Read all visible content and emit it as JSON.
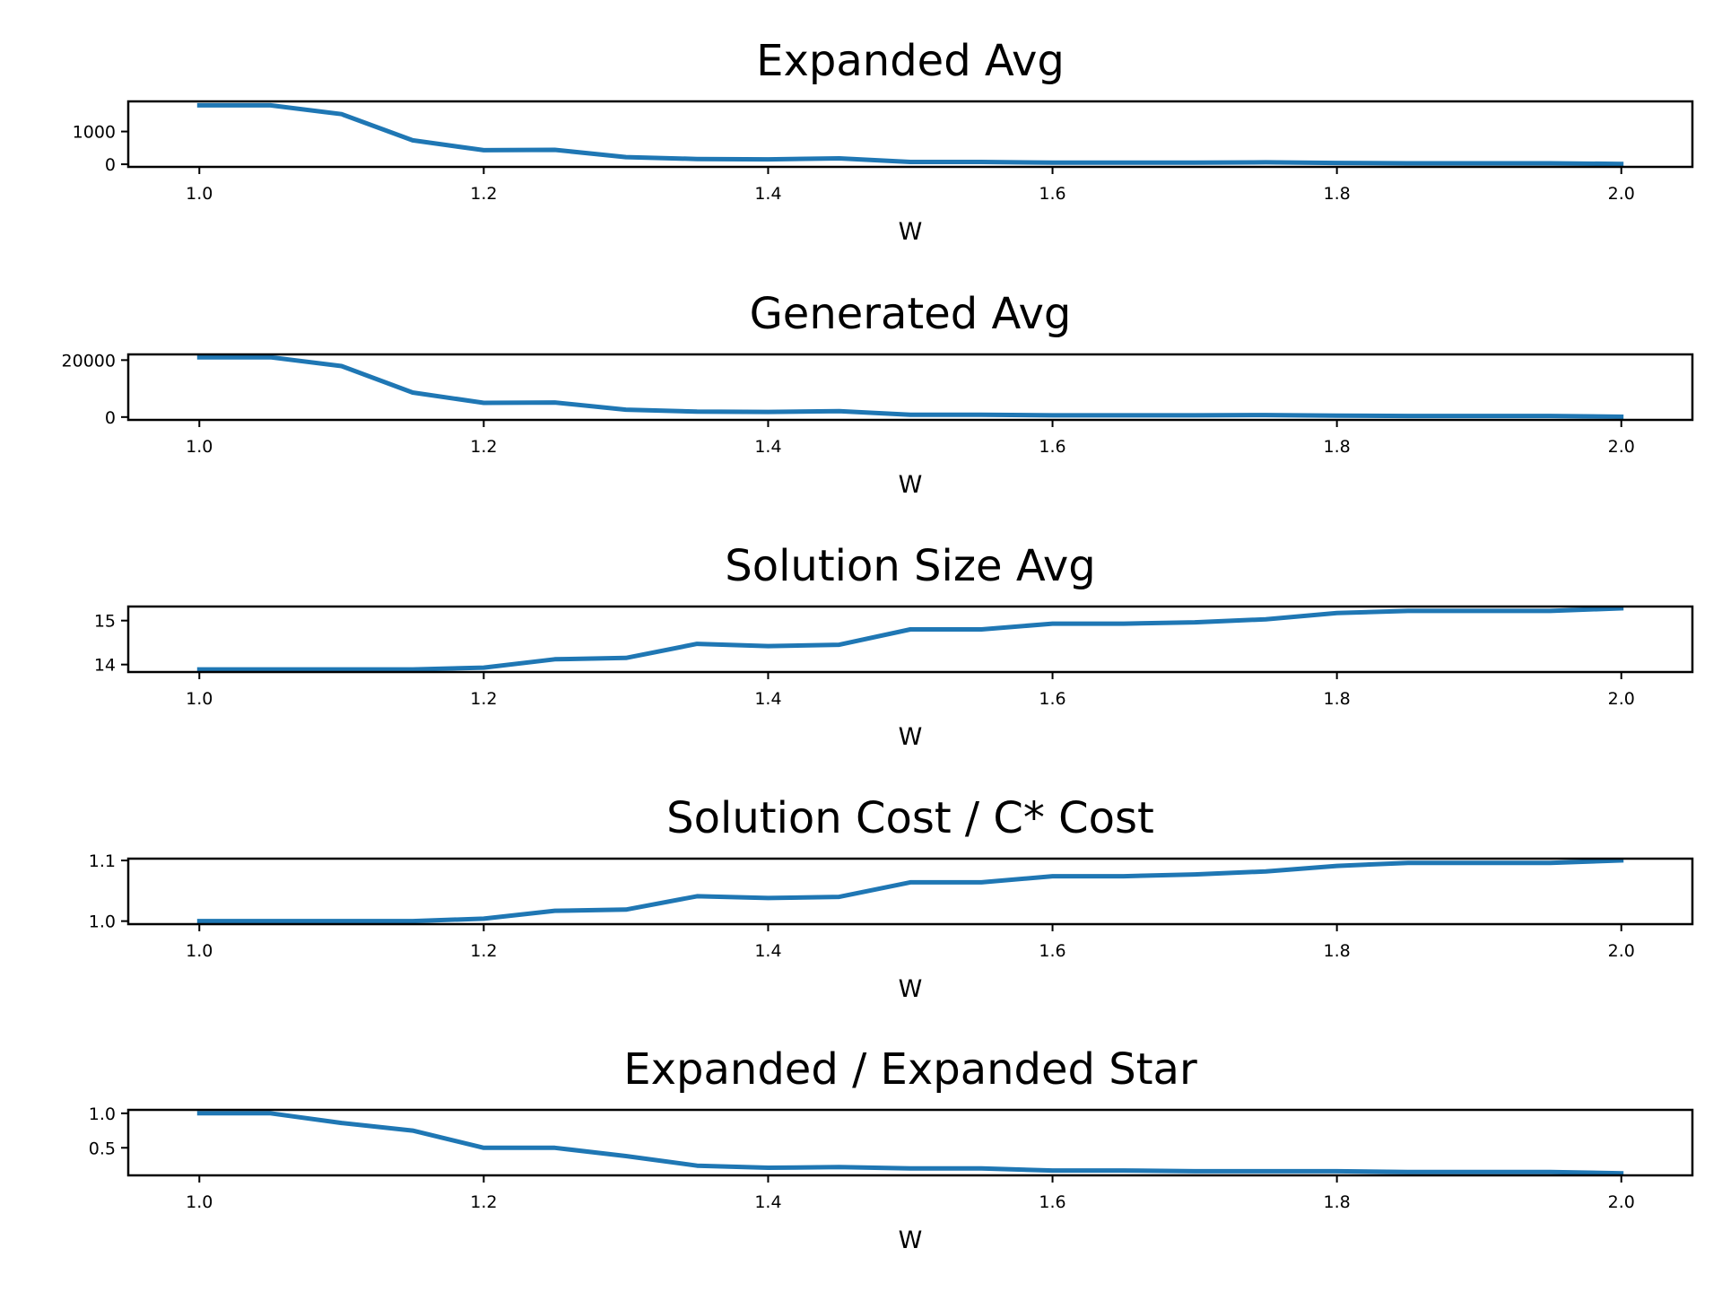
{
  "colors": {
    "line": "#1f77b4",
    "axis": "#000000",
    "background": "#ffffff"
  },
  "chart_data": [
    {
      "type": "line",
      "title": "Expanded Avg",
      "xlabel": "W",
      "ylabel": "",
      "xlim": [
        0.95,
        2.05
      ],
      "ylim": [
        -80,
        1920
      ],
      "xticks": [
        1.0,
        1.2,
        1.4,
        1.6,
        1.8,
        2.0
      ],
      "xtick_labels": [
        "1.0",
        "1.2",
        "1.4",
        "1.6",
        "1.8",
        "2.0"
      ],
      "yticks": [
        0,
        1000
      ],
      "ytick_labels": [
        "0",
        "1000"
      ],
      "grid": false,
      "x": [
        1.0,
        1.05,
        1.1,
        1.15,
        1.2,
        1.25,
        1.3,
        1.35,
        1.4,
        1.45,
        1.5,
        1.55,
        1.6,
        1.65,
        1.7,
        1.75,
        1.8,
        1.85,
        1.9,
        1.95,
        2.0
      ],
      "series": [
        {
          "values": [
            1800,
            1800,
            1530,
            730,
            430,
            440,
            220,
            160,
            150,
            180,
            70,
            70,
            50,
            50,
            50,
            60,
            40,
            30,
            30,
            30,
            10
          ]
        }
      ]
    },
    {
      "type": "line",
      "title": "Generated Avg",
      "xlabel": "W",
      "ylabel": "",
      "xlim": [
        0.95,
        2.05
      ],
      "ylim": [
        -1000,
        22000
      ],
      "xticks": [
        1.0,
        1.2,
        1.4,
        1.6,
        1.8,
        2.0
      ],
      "xtick_labels": [
        "1.0",
        "1.2",
        "1.4",
        "1.6",
        "1.8",
        "2.0"
      ],
      "yticks": [
        0,
        20000
      ],
      "ytick_labels": [
        "0",
        "20000"
      ],
      "grid": false,
      "x": [
        1.0,
        1.05,
        1.1,
        1.15,
        1.2,
        1.25,
        1.3,
        1.35,
        1.4,
        1.45,
        1.5,
        1.55,
        1.6,
        1.65,
        1.7,
        1.75,
        1.8,
        1.85,
        1.9,
        1.95,
        2.0
      ],
      "series": [
        {
          "values": [
            21000,
            21000,
            17900,
            8600,
            5000,
            5100,
            2600,
            1900,
            1800,
            2100,
            800,
            800,
            600,
            600,
            600,
            700,
            500,
            400,
            400,
            400,
            100
          ]
        }
      ]
    },
    {
      "type": "line",
      "title": "Solution Size Avg",
      "xlabel": "W",
      "ylabel": "",
      "xlim": [
        0.95,
        2.05
      ],
      "ylim": [
        13.83,
        15.32
      ],
      "xticks": [
        1.0,
        1.2,
        1.4,
        1.6,
        1.8,
        2.0
      ],
      "xtick_labels": [
        "1.0",
        "1.2",
        "1.4",
        "1.6",
        "1.8",
        "2.0"
      ],
      "yticks": [
        14,
        15
      ],
      "ytick_labels": [
        "14",
        "15"
      ],
      "grid": false,
      "x": [
        1.0,
        1.05,
        1.1,
        1.15,
        1.2,
        1.25,
        1.3,
        1.35,
        1.4,
        1.45,
        1.5,
        1.55,
        1.6,
        1.65,
        1.7,
        1.75,
        1.8,
        1.85,
        1.9,
        1.95,
        2.0
      ],
      "series": [
        {
          "values": [
            13.89,
            13.89,
            13.89,
            13.89,
            13.93,
            14.12,
            14.15,
            14.47,
            14.42,
            14.45,
            14.8,
            14.8,
            14.93,
            14.93,
            14.96,
            15.03,
            15.17,
            15.22,
            15.22,
            15.22,
            15.28
          ]
        }
      ]
    },
    {
      "type": "line",
      "title": "Solution Cost / C* Cost",
      "xlabel": "W",
      "ylabel": "",
      "xlim": [
        0.95,
        2.05
      ],
      "ylim": [
        0.995,
        1.103
      ],
      "xticks": [
        1.0,
        1.2,
        1.4,
        1.6,
        1.8,
        2.0
      ],
      "xtick_labels": [
        "1.0",
        "1.2",
        "1.4",
        "1.6",
        "1.8",
        "2.0"
      ],
      "yticks": [
        1.0,
        1.1
      ],
      "ytick_labels": [
        "1.0",
        "1.1"
      ],
      "grid": false,
      "x": [
        1.0,
        1.05,
        1.1,
        1.15,
        1.2,
        1.25,
        1.3,
        1.35,
        1.4,
        1.45,
        1.5,
        1.55,
        1.6,
        1.65,
        1.7,
        1.75,
        1.8,
        1.85,
        1.9,
        1.95,
        2.0
      ],
      "series": [
        {
          "values": [
            1.0,
            1.0,
            1.0,
            1.0,
            1.004,
            1.017,
            1.019,
            1.041,
            1.038,
            1.04,
            1.064,
            1.064,
            1.074,
            1.074,
            1.077,
            1.082,
            1.091,
            1.096,
            1.096,
            1.096,
            1.1
          ]
        }
      ]
    },
    {
      "type": "line",
      "title": "Expanded / Expanded Star",
      "xlabel": "W",
      "ylabel": "",
      "xlim": [
        0.95,
        2.05
      ],
      "ylim": [
        0.1,
        1.05
      ],
      "xticks": [
        1.0,
        1.2,
        1.4,
        1.6,
        1.8,
        2.0
      ],
      "xtick_labels": [
        "1.0",
        "1.2",
        "1.4",
        "1.6",
        "1.8",
        "2.0"
      ],
      "yticks": [
        0.5,
        1.0
      ],
      "ytick_labels": [
        "0.5",
        "1.0"
      ],
      "grid": false,
      "x": [
        1.0,
        1.05,
        1.1,
        1.15,
        1.2,
        1.25,
        1.3,
        1.35,
        1.4,
        1.45,
        1.5,
        1.55,
        1.6,
        1.65,
        1.7,
        1.75,
        1.8,
        1.85,
        1.9,
        1.95,
        2.0
      ],
      "series": [
        {
          "values": [
            1.0,
            1.0,
            0.86,
            0.75,
            0.5,
            0.5,
            0.38,
            0.24,
            0.21,
            0.22,
            0.2,
            0.2,
            0.17,
            0.17,
            0.16,
            0.16,
            0.16,
            0.15,
            0.15,
            0.15,
            0.13
          ]
        }
      ]
    }
  ]
}
